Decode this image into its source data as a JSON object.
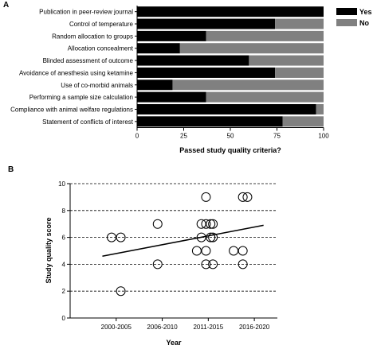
{
  "chart_data": [
    {
      "panel_label": "A",
      "type": "bar",
      "orientation": "horizontal",
      "stacked": true,
      "categories": [
        "Publication in peer-review journal",
        "Control of temperature",
        "Random allocation to groups",
        "Allocation concealment",
        "Blinded assessment of outcome",
        "Avoidance of anesthesia using ketamine",
        "Use of co-morbid animals",
        "Performing a sample size calculation",
        "Compliance with animal welfare regulations",
        "Statement of conflicts of interest"
      ],
      "series": [
        {
          "name": "Yes",
          "color": "#000000",
          "values": [
            100,
            74,
            37,
            23,
            60,
            74,
            19,
            37,
            96,
            78
          ]
        },
        {
          "name": "No",
          "color": "#808080",
          "values": [
            0,
            26,
            63,
            77,
            40,
            26,
            81,
            63,
            4,
            22
          ]
        }
      ],
      "xlabel": "Passed study quality criteria?",
      "xlim": [
        0,
        100
      ],
      "xticks": [
        "0",
        "25",
        "50",
        "75",
        "100"
      ],
      "legend_position": "top-right"
    },
    {
      "panel_label": "B",
      "type": "scatter",
      "categories": [
        "2000-2005",
        "2006-2010",
        "2011-2015",
        "2016-2020"
      ],
      "points": [
        {
          "x": 0.9,
          "y": 6
        },
        {
          "x": 1.1,
          "y": 6
        },
        {
          "x": 1.1,
          "y": 2
        },
        {
          "x": 1.9,
          "y": 7
        },
        {
          "x": 1.9,
          "y": 4
        },
        {
          "x": 2.75,
          "y": 5
        },
        {
          "x": 2.85,
          "y": 7
        },
        {
          "x": 2.85,
          "y": 6
        },
        {
          "x": 2.95,
          "y": 9
        },
        {
          "x": 2.95,
          "y": 7
        },
        {
          "x": 2.95,
          "y": 5
        },
        {
          "x": 2.95,
          "y": 4
        },
        {
          "x": 3.05,
          "y": 7
        },
        {
          "x": 3.05,
          "y": 6
        },
        {
          "x": 3.1,
          "y": 7
        },
        {
          "x": 3.1,
          "y": 6
        },
        {
          "x": 3.1,
          "y": 4
        },
        {
          "x": 3.55,
          "y": 5
        },
        {
          "x": 3.75,
          "y": 9
        },
        {
          "x": 3.75,
          "y": 5
        },
        {
          "x": 3.75,
          "y": 4
        },
        {
          "x": 3.85,
          "y": 9
        }
      ],
      "trendline": {
        "x": [
          0.7,
          4.2
        ],
        "y": [
          4.6,
          6.9
        ]
      },
      "xlabel": "Year",
      "ylabel": "Study quality score",
      "ylim": [
        0,
        10
      ],
      "yticks": [
        "0",
        "2",
        "4",
        "6",
        "8",
        "10"
      ],
      "grid": "horizontal dashed"
    }
  ]
}
